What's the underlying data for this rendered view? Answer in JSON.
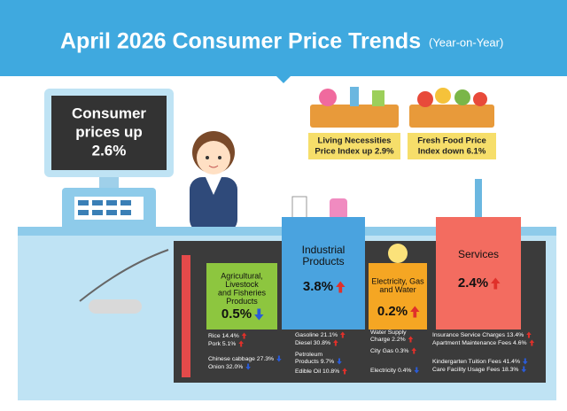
{
  "header": {
    "title": "April 2026 Consumer Price Trends",
    "subtitle": "(Year-on-Year)"
  },
  "monitor": {
    "lines": [
      "Consumer",
      "prices up",
      "2.6%"
    ]
  },
  "baskets": [
    {
      "lines": [
        "Living Necessities",
        "Price Index up 2.9%"
      ]
    },
    {
      "lines": [
        "Fresh Food Price",
        "Index down 6.1%"
      ]
    }
  ],
  "categories": [
    {
      "name": [
        "Agricultural,",
        "Livestock",
        "and Fisheries",
        "Products"
      ],
      "value": "0.5%",
      "direction": "down",
      "items": [
        {
          "lines": [
            "Rice 14.4%"
          ],
          "direction": "up"
        },
        {
          "lines": [
            "Pork 5.1%"
          ],
          "direction": "up"
        },
        {
          "lines": [
            "Chinese cabbage 27.3%"
          ],
          "direction": "down"
        },
        {
          "lines": [
            "Onion 32.0%"
          ],
          "direction": "down"
        }
      ]
    },
    {
      "name": [
        "Industrial",
        "Products"
      ],
      "value": "3.8%",
      "direction": "up",
      "items": [
        {
          "lines": [
            "Gasoline 21.1%"
          ],
          "direction": "up"
        },
        {
          "lines": [
            "Diesel 30.8%"
          ],
          "direction": "up"
        },
        {
          "lines": [
            "Petroleum",
            "Products 9.7%"
          ],
          "direction": "down"
        },
        {
          "lines": [
            "Edible Oil 10.8%"
          ],
          "direction": "up"
        }
      ]
    },
    {
      "name": [
        "Electricity, Gas",
        "and Water"
      ],
      "value": "0.2%",
      "direction": "up",
      "items": [
        {
          "lines": [
            "Water Supply",
            "Charge 2.2%"
          ],
          "direction": "up"
        },
        {
          "lines": [
            "City Gas 0.3%"
          ],
          "direction": "up"
        },
        {
          "lines": [
            "Electricity 0.4%"
          ],
          "direction": "down"
        }
      ]
    },
    {
      "name": [
        "Services"
      ],
      "value": "2.4%",
      "direction": "up",
      "items": [
        {
          "lines": [
            "Insurance Service Charges 13.4%"
          ],
          "direction": "up"
        },
        {
          "lines": [
            "Apartment Maintenance Fees 4.6%"
          ],
          "direction": "up"
        },
        {
          "lines": [
            "Kindergarten Tuition Fees 41.4%"
          ],
          "direction": "down"
        },
        {
          "lines": [
            "Care Facility Usage Fees 18.3%"
          ],
          "direction": "down"
        }
      ]
    }
  ]
}
